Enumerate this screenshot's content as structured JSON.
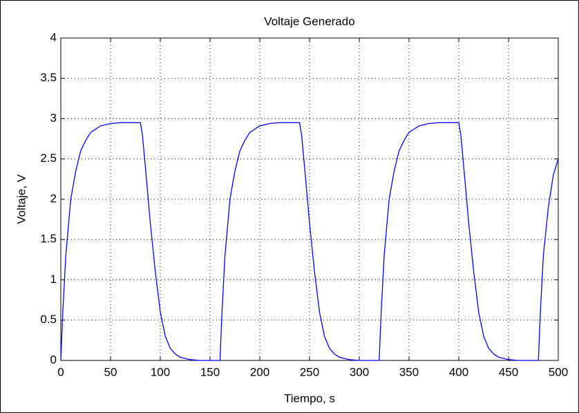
{
  "chart_data": {
    "type": "line",
    "title": "Voltaje Generado",
    "xlabel": "Tiempo, s",
    "ylabel": "Voltaje, V",
    "x": [
      0,
      2,
      5,
      10,
      15,
      20,
      25,
      30,
      40,
      50,
      60,
      70,
      80,
      82,
      85,
      90,
      95,
      100,
      105,
      110,
      115,
      120,
      130,
      140,
      150,
      160,
      162,
      165,
      170,
      175,
      180,
      185,
      190,
      200,
      210,
      220,
      230,
      240,
      242,
      245,
      250,
      255,
      260,
      265,
      270,
      275,
      280,
      290,
      300,
      310,
      320,
      322,
      325,
      330,
      335,
      340,
      345,
      350,
      360,
      370,
      380,
      390,
      400,
      402,
      405,
      410,
      415,
      420,
      425,
      430,
      435,
      440,
      450,
      460,
      470,
      480,
      482,
      485,
      490,
      495,
      500
    ],
    "series": [
      {
        "name": "Voltaje",
        "color": "#0000ff",
        "values": [
          0,
          0.6,
          1.3,
          2.0,
          2.35,
          2.6,
          2.73,
          2.83,
          2.91,
          2.94,
          2.95,
          2.95,
          2.95,
          2.8,
          2.4,
          1.7,
          1.1,
          0.6,
          0.3,
          0.15,
          0.08,
          0.04,
          0.01,
          0,
          0,
          0,
          0.6,
          1.3,
          2.0,
          2.35,
          2.6,
          2.73,
          2.83,
          2.91,
          2.94,
          2.95,
          2.95,
          2.95,
          2.8,
          2.4,
          1.7,
          1.1,
          0.6,
          0.3,
          0.15,
          0.08,
          0.04,
          0.01,
          0,
          0,
          0,
          0.6,
          1.3,
          2.0,
          2.35,
          2.6,
          2.73,
          2.83,
          2.91,
          2.94,
          2.95,
          2.95,
          2.95,
          2.8,
          2.4,
          1.7,
          1.1,
          0.6,
          0.3,
          0.15,
          0.08,
          0.04,
          0.01,
          0,
          0,
          0,
          0.6,
          1.3,
          1.9,
          2.3,
          2.5
        ]
      }
    ],
    "xlim": [
      0,
      500
    ],
    "xticks": [
      0,
      50,
      100,
      150,
      200,
      250,
      300,
      350,
      400,
      450,
      500
    ],
    "ylim": [
      0,
      4
    ],
    "yticks": [
      0,
      0.5,
      1,
      1.5,
      2,
      2.5,
      3,
      3.5,
      4
    ],
    "grid": true
  }
}
